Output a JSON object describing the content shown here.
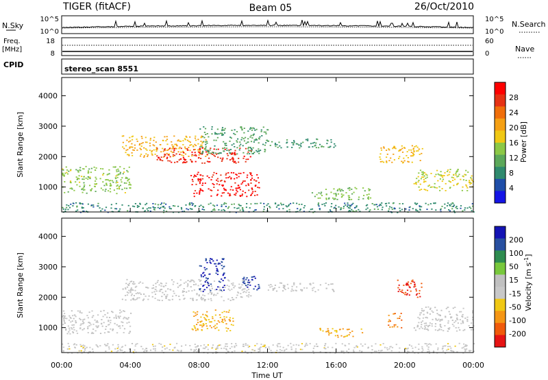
{
  "header": {
    "left_title": "TIGER (fitACF)",
    "center_title": "Beam 05",
    "right_title": "26/Oct/2010"
  },
  "strips": {
    "nsky": {
      "label": "N.Sky",
      "left_top_tick": "10^5",
      "left_bottom_tick": "10^0",
      "right_top_tick": "10^5",
      "right_bottom_tick": "10^0",
      "right_label": "N.Search"
    },
    "freq": {
      "label_line1": "Freq.",
      "label_line2": "[MHz]",
      "left_top_tick": "18",
      "left_bottom_tick": "8",
      "right_top_tick": "60",
      "right_bottom_tick": "0",
      "right_label": "Nave"
    },
    "cpid": {
      "label": "CPID",
      "program": "stereo_scan 8551"
    }
  },
  "axes": {
    "ylabel": "Slant Range [km]",
    "xlabel": "Time UT",
    "yticks": [
      "1000",
      "2000",
      "3000",
      "4000"
    ],
    "xticks": [
      "00:00",
      "04:00",
      "08:00",
      "12:00",
      "16:00",
      "20:00",
      "00:00"
    ]
  },
  "colors": {
    "power": [
      "#1414e6",
      "#1f4ea8",
      "#2f8a6e",
      "#5ca85a",
      "#8cc846",
      "#f0c814",
      "#f5a014",
      "#f06e0a",
      "#e63214",
      "#ff0000"
    ],
    "velocity": [
      "#1414b4",
      "#2850a0",
      "#2e8c50",
      "#78c83c",
      "#c0c0c0",
      "#c8c8c8",
      "#f0c814",
      "#f59614",
      "#f05a0a",
      "#e61414"
    ]
  },
  "chart_data": [
    {
      "type": "heatmap",
      "title": "",
      "xlabel": "",
      "ylabel": "Slant Range [km]",
      "x_range_hours": [
        0,
        24
      ],
      "ylim": [
        180,
        4600
      ],
      "colorbar": {
        "label": "Power [dB]",
        "range": [
          0,
          32
        ],
        "ticks": [
          "28",
          "24",
          "20",
          "16",
          "12",
          "8",
          "4"
        ]
      },
      "regions": [
        {
          "x": [
            0,
            4
          ],
          "y": [
            800,
            1700
          ],
          "value": 14
        },
        {
          "x": [
            3.5,
            8.5
          ],
          "y": [
            2000,
            2700
          ],
          "value": 20
        },
        {
          "x": [
            5.5,
            11
          ],
          "y": [
            1800,
            2300
          ],
          "value": 28
        },
        {
          "x": [
            7.5,
            11.5
          ],
          "y": [
            700,
            1500
          ],
          "value": 30
        },
        {
          "x": [
            8,
            12
          ],
          "y": [
            2100,
            3000
          ],
          "value": 10
        },
        {
          "x": [
            12,
            16
          ],
          "y": [
            2300,
            2600
          ],
          "value": 9
        },
        {
          "x": [
            14.5,
            18
          ],
          "y": [
            600,
            1000
          ],
          "value": 13
        },
        {
          "x": [
            18.5,
            21
          ],
          "y": [
            1800,
            2400
          ],
          "value": 19
        },
        {
          "x": [
            20.5,
            24
          ],
          "y": [
            900,
            1600
          ],
          "value": 16
        },
        {
          "x": [
            0,
            24
          ],
          "y": [
            180,
            500
          ],
          "value": 8
        }
      ]
    },
    {
      "type": "heatmap",
      "title": "",
      "xlabel": "Time UT",
      "ylabel": "Slant Range [km]",
      "x_range_hours": [
        0,
        24
      ],
      "ylim": [
        180,
        4600
      ],
      "colorbar": {
        "label": "Velocity [m s^-1]",
        "range": [
          -250,
          250
        ],
        "ticks": [
          "200",
          "100",
          "50",
          "15",
          "-15",
          "-50",
          "-100",
          "-200"
        ]
      },
      "regions": [
        {
          "x": [
            0,
            4
          ],
          "y": [
            800,
            1600
          ],
          "value": 0
        },
        {
          "x": [
            3.5,
            11
          ],
          "y": [
            1900,
            2600
          ],
          "value": 0
        },
        {
          "x": [
            8,
            9.5
          ],
          "y": [
            2200,
            3300
          ],
          "value": 200
        },
        {
          "x": [
            7.5,
            10
          ],
          "y": [
            900,
            1600
          ],
          "value": -100
        },
        {
          "x": [
            10.5,
            11.5
          ],
          "y": [
            2100,
            2700
          ],
          "value": 200
        },
        {
          "x": [
            12,
            16
          ],
          "y": [
            2200,
            2500
          ],
          "value": 0
        },
        {
          "x": [
            15,
            17.5
          ],
          "y": [
            700,
            1000
          ],
          "value": -100
        },
        {
          "x": [
            19.5,
            21
          ],
          "y": [
            2000,
            2600
          ],
          "value": -200
        },
        {
          "x": [
            19,
            19.8
          ],
          "y": [
            1000,
            1500
          ],
          "value": -150
        },
        {
          "x": [
            20.5,
            24
          ],
          "y": [
            900,
            1700
          ],
          "value": 0
        },
        {
          "x": [
            0,
            24
          ],
          "y": [
            180,
            500
          ],
          "value": -20
        }
      ]
    }
  ]
}
